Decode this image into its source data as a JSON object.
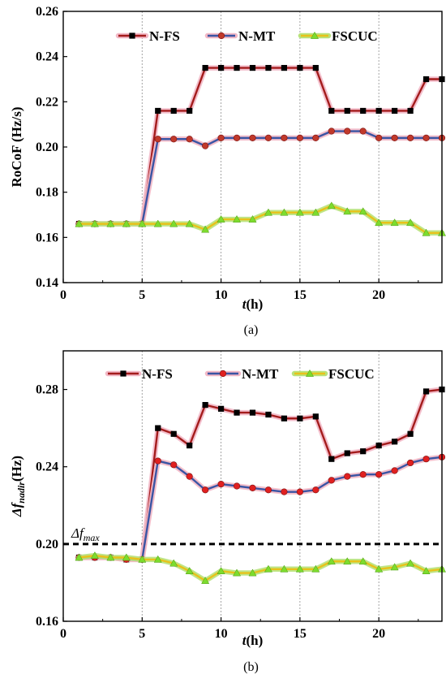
{
  "chart_data": [
    {
      "type": "line",
      "panel_label": "(a)",
      "xlabel_italic": "t",
      "xlabel_unit": "(h)",
      "ylabel": "RoCoF (Hz/s)",
      "xlim": [
        0,
        24
      ],
      "ylim": [
        0.14,
        0.26
      ],
      "xticks": [
        0,
        5,
        10,
        15,
        20
      ],
      "yticks": [
        0.14,
        0.16,
        0.18,
        0.2,
        0.22,
        0.24,
        0.26
      ],
      "ytick_decimals": 2,
      "grid": "vertical dotted at x ticks",
      "legend_placement": "top",
      "x": [
        1,
        2,
        3,
        4,
        5,
        6,
        7,
        8,
        9,
        10,
        11,
        12,
        13,
        14,
        15,
        16,
        17,
        18,
        19,
        20,
        21,
        22,
        23,
        24
      ],
      "series": [
        {
          "name": "N-FS",
          "color": "#A41C1C",
          "glow": "#F2B8C6",
          "marker": "square",
          "marker_color": "#000000",
          "values": [
            0.166,
            0.166,
            0.166,
            0.166,
            0.166,
            0.216,
            0.216,
            0.216,
            0.235,
            0.235,
            0.235,
            0.235,
            0.235,
            0.235,
            0.235,
            0.235,
            0.216,
            0.216,
            0.216,
            0.216,
            0.216,
            0.216,
            0.23,
            0.23
          ]
        },
        {
          "name": "N-MT",
          "color": "#3A55A4",
          "glow": "#F2B8C6",
          "marker": "circle",
          "marker_color": "#C0392B",
          "values": [
            0.166,
            0.166,
            0.166,
            0.166,
            0.166,
            0.2035,
            0.2035,
            0.2035,
            0.2005,
            0.204,
            0.204,
            0.204,
            0.204,
            0.204,
            0.204,
            0.204,
            0.207,
            0.207,
            0.207,
            0.204,
            0.204,
            0.204,
            0.204,
            0.204
          ]
        },
        {
          "name": "FSCUC",
          "color": "#E8C21A",
          "glow": "#B8E27A",
          "marker": "triangle",
          "marker_color": "#7DDC2E",
          "values": [
            0.166,
            0.166,
            0.166,
            0.166,
            0.166,
            0.166,
            0.166,
            0.166,
            0.1635,
            0.168,
            0.168,
            0.168,
            0.171,
            0.171,
            0.171,
            0.171,
            0.174,
            0.1715,
            0.1715,
            0.1665,
            0.1665,
            0.1665,
            0.162,
            0.162
          ]
        }
      ]
    },
    {
      "type": "line",
      "panel_label": "(b)",
      "xlabel_italic": "t",
      "xlabel_unit": "(h)",
      "ylabel_prefix": "Δf",
      "ylabel_sub": "nadir",
      "ylabel_unit": "(Hz)",
      "xlim": [
        0,
        24
      ],
      "ylim": [
        0.16,
        0.3
      ],
      "xticks": [
        0,
        5,
        10,
        15,
        20
      ],
      "yticks": [
        0.16,
        0.2,
        0.24,
        0.28
      ],
      "ytick_decimals": 2,
      "grid": "vertical dotted at x ticks",
      "legend_placement": "top",
      "reference_line": {
        "y": 0.2,
        "label_prefix": "Δf",
        "label_sub": "max",
        "style": "dashed",
        "color": "#000000"
      },
      "x": [
        1,
        2,
        3,
        4,
        5,
        6,
        7,
        8,
        9,
        10,
        11,
        12,
        13,
        14,
        15,
        16,
        17,
        18,
        19,
        20,
        21,
        22,
        23,
        24
      ],
      "series": [
        {
          "name": "N-FS",
          "color": "#A41C1C",
          "glow": "#F2B8C6",
          "marker": "square",
          "marker_color": "#000000",
          "values": [
            0.193,
            0.193,
            0.193,
            0.192,
            0.192,
            0.26,
            0.257,
            0.251,
            0.272,
            0.27,
            0.268,
            0.268,
            0.267,
            0.265,
            0.265,
            0.266,
            0.244,
            0.247,
            0.248,
            0.251,
            0.253,
            0.257,
            0.279,
            0.28
          ]
        },
        {
          "name": "N-MT",
          "color": "#3A55A4",
          "glow": "#F2B8C6",
          "marker": "circle",
          "marker_color": "#E02020",
          "values": [
            0.193,
            0.193,
            0.193,
            0.192,
            0.192,
            0.243,
            0.241,
            0.235,
            0.228,
            0.231,
            0.23,
            0.229,
            0.228,
            0.227,
            0.227,
            0.228,
            0.233,
            0.235,
            0.236,
            0.236,
            0.238,
            0.242,
            0.244,
            0.245
          ]
        },
        {
          "name": "FSCUC",
          "color": "#E8C21A",
          "glow": "#B8E27A",
          "marker": "triangle",
          "marker_color": "#7DDC2E",
          "values": [
            0.193,
            0.194,
            0.193,
            0.193,
            0.192,
            0.192,
            0.19,
            0.186,
            0.181,
            0.186,
            0.185,
            0.185,
            0.187,
            0.187,
            0.187,
            0.187,
            0.191,
            0.191,
            0.191,
            0.187,
            0.188,
            0.19,
            0.186,
            0.187
          ]
        }
      ]
    }
  ]
}
